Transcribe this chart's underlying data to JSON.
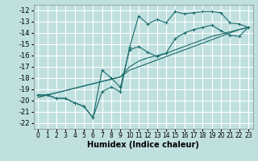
{
  "xlabel": "Humidex (Indice chaleur)",
  "ylabel": "",
  "bg_color": "#c0e0e0",
  "grid_color": "#ffffff",
  "line_color": "#1a6b6b",
  "xlim": [
    -0.5,
    23.5
  ],
  "ylim": [
    -22.5,
    -11.5
  ],
  "yticks": [
    -22,
    -21,
    -20,
    -19,
    -18,
    -17,
    -16,
    -15,
    -14,
    -13,
    -12
  ],
  "xticks": [
    0,
    1,
    2,
    3,
    4,
    5,
    6,
    7,
    8,
    9,
    10,
    11,
    12,
    13,
    14,
    15,
    16,
    17,
    18,
    19,
    20,
    21,
    22,
    23
  ],
  "hours": [
    0,
    1,
    2,
    3,
    4,
    5,
    6,
    7,
    8,
    9,
    10,
    11,
    12,
    13,
    14,
    15,
    16,
    17,
    18,
    19,
    20,
    21,
    22,
    23
  ],
  "line_jagged": [
    -19.5,
    -19.5,
    -19.8,
    -19.8,
    -20.2,
    -20.5,
    -21.5,
    -19.2,
    -18.8,
    -19.2,
    -15.3,
    -12.5,
    -13.2,
    -12.8,
    -13.1,
    -12.1,
    -12.3,
    -12.2,
    -12.1,
    -12.1,
    -12.2,
    -13.1,
    -13.2,
    -13.5
  ],
  "line_upper": [
    -19.5,
    -19.5,
    -19.8,
    -19.8,
    -20.2,
    -20.5,
    -21.5,
    -17.3,
    -18.0,
    -18.8,
    -15.5,
    -15.2,
    -15.7,
    -16.1,
    -15.8,
    -14.5,
    -14.0,
    -13.7,
    -13.5,
    -13.3,
    -13.8,
    -14.2,
    -14.3,
    -13.5
  ],
  "line_trend1": [
    -19.7,
    -19.5,
    -19.3,
    -19.1,
    -18.9,
    -18.7,
    -18.5,
    -18.3,
    -18.1,
    -17.9,
    -17.0,
    -16.5,
    -16.2,
    -16.0,
    -15.8,
    -15.5,
    -15.2,
    -14.9,
    -14.6,
    -14.3,
    -14.1,
    -13.9,
    -13.7,
    -13.5
  ],
  "line_trend2": [
    -19.7,
    -19.5,
    -19.3,
    -19.1,
    -18.9,
    -18.7,
    -18.5,
    -18.3,
    -18.1,
    -17.9,
    -17.3,
    -17.0,
    -16.7,
    -16.4,
    -16.1,
    -15.8,
    -15.5,
    -15.2,
    -14.9,
    -14.6,
    -14.3,
    -14.0,
    -13.7,
    -13.5
  ]
}
